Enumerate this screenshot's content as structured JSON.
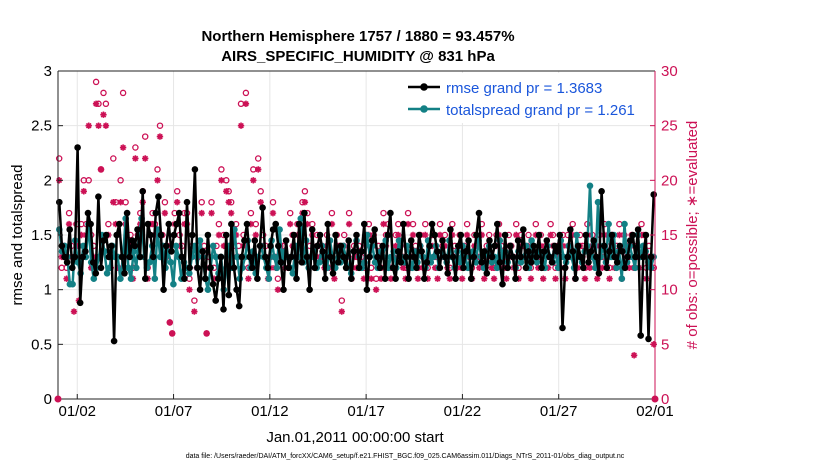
{
  "chart_data": {
    "type": "line",
    "title_line1": "Northern Hemisphere 1757 / 1880 = 93.457%",
    "title_line2": "AIRS_SPECIFIC_HUMIDITY @ 831 hPa",
    "ylabel_left": "rmse and totalspread",
    "ylabel_right": "# of obs: o=possible; ∗=evaluated",
    "xlabel": "Jan.01,2011 00:00:00 start",
    "footnote": "data file: /Users/raeder/DAI/ATM_forcXX/CAM6_setup/f.e21.FHIST_BGC.f09_025.CAM6assim.011/Diags_NTrS_2011-01/obs_diag_output.nc",
    "xlim": [
      0,
      31
    ],
    "ylim_left": [
      0,
      3
    ],
    "ylim_right": [
      0,
      30
    ],
    "x_ticks": [
      1,
      6,
      11,
      16,
      21,
      26,
      31
    ],
    "x_tick_labels": [
      "01/02",
      "01/07",
      "01/12",
      "01/17",
      "01/22",
      "01/27",
      "02/01"
    ],
    "y_ticks_left": [
      0,
      0.5,
      1,
      1.5,
      2,
      2.5,
      3
    ],
    "y_tick_labels_left": [
      "0",
      "0.5",
      "1",
      "1.5",
      "2",
      "2.5",
      "3"
    ],
    "y_ticks_right": [
      0,
      5,
      10,
      15,
      20,
      25,
      30
    ],
    "y_tick_labels_right": [
      "0",
      "5",
      "10",
      "15",
      "20",
      "25",
      "30"
    ],
    "legend_position": "top-right",
    "colors": {
      "rmse": "#000000",
      "spread": "#138085",
      "obs": "#cc1155",
      "grid": "#e6e6e6",
      "legend_text": "#1a56db"
    },
    "series": [
      {
        "name": "rmse grand pr = 1.3683",
        "key": "rmse",
        "values": [
          1.8,
          1.4,
          1.3,
          1.25,
          1.55,
          1.2,
          1.3,
          2.3,
          0.88,
          1.3,
          1.35,
          1.7,
          1.6,
          1.25,
          1.15,
          1.85,
          1.2,
          1.45,
          1.5,
          1.3,
          1.4,
          0.53,
          1.5,
          1.6,
          1.3,
          1.15,
          1.7,
          1.3,
          1.45,
          1.4,
          1.55,
          1.3,
          1.9,
          1.1,
          1.6,
          1.5,
          1.3,
          1.7,
          1.85,
          1.5,
          1.0,
          1.4,
          1.6,
          1.35,
          1.5,
          1.6,
          1.7,
          1.3,
          1.1,
          1.8,
          1.2,
          1.5,
          2.1,
          1.2,
          1.0,
          1.35,
          1.1,
          1.5,
          1.2,
          1.05,
          0.9,
          1.1,
          1.3,
          0.82,
          1.5,
          0.95,
          1.6,
          1.2,
          1.0,
          0.85,
          1.3,
          1.45,
          1.6,
          1.3,
          1.2,
          1.45,
          1.1,
          1.4,
          1.75,
          1.3,
          1.2,
          1.4,
          1.55,
          1.6,
          1.4,
          1.25,
          1.0,
          1.45,
          1.2,
          1.3,
          1.5,
          1.1,
          1.6,
          1.25,
          1.7,
          1.3,
          1.0,
          1.55,
          1.2,
          1.4,
          1.5,
          1.35,
          1.1,
          1.6,
          1.3,
          1.15,
          1.5,
          1.25,
          1.4,
          1.3,
          1.2,
          1.45,
          1.1,
          1.35,
          1.5,
          1.2,
          1.35,
          1.6,
          1.0,
          1.3,
          1.45,
          1.55,
          1.3,
          1.2,
          1.4,
          1.1,
          1.5,
          1.7,
          1.2,
          1.1,
          1.35,
          1.25,
          1.6,
          1.3,
          1.1,
          1.45,
          1.3,
          1.2,
          1.5,
          1.35,
          1.1,
          1.25,
          1.4,
          1.6,
          1.5,
          1.35,
          1.2,
          1.45,
          1.3,
          1.15,
          1.55,
          1.3,
          1.1,
          1.4,
          1.5,
          1.2,
          1.35,
          1.45,
          1.1,
          1.3,
          1.5,
          1.7,
          1.25,
          1.35,
          1.15,
          1.45,
          1.3,
          1.4,
          1.6,
          1.25,
          1.05,
          1.5,
          1.2,
          1.4,
          1.3,
          1.1,
          1.45,
          1.3,
          1.55,
          1.2,
          1.35,
          1.25,
          1.4,
          1.3,
          1.5,
          1.2,
          1.35,
          1.45,
          1.3,
          1.25,
          1.4,
          1.35,
          1.5,
          0.65,
          1.2,
          1.3,
          1.55,
          1.35,
          1.1,
          1.4,
          1.3,
          1.2,
          1.5,
          1.25,
          1.35,
          1.45,
          1.3,
          1.15,
          1.9,
          1.4,
          1.2,
          1.35,
          1.5,
          1.3,
          1.25,
          1.4,
          1.35,
          1.2,
          1.3,
          1.45,
          1.5,
          1.3,
          1.55,
          0.58,
          1.3,
          1.5,
          0.55,
          1.3,
          1.87
        ]
      },
      {
        "name": "totalspread grand pr = 1.261",
        "key": "spread",
        "values": [
          1.55,
          1.35,
          1.4,
          1.3,
          1.05,
          1.05,
          1.45,
          1.25,
          1.15,
          1.4,
          1.3,
          1.6,
          1.25,
          1.1,
          1.2,
          1.3,
          1.5,
          1.35,
          1.15,
          1.2,
          1.4,
          1.3,
          1.3,
          1.1,
          1.3,
          1.65,
          1.2,
          1.1,
          1.35,
          1.2,
          1.5,
          1.65,
          1.3,
          1.2,
          1.25,
          1.4,
          1.1,
          1.55,
          1.3,
          1.4,
          1.2,
          1.35,
          1.25,
          1.05,
          1.4,
          1.3,
          1.1,
          1.25,
          1.2,
          1.15,
          1.3,
          1.4,
          1.2,
          1.45,
          1.3,
          1.1,
          1.0,
          1.2,
          1.4,
          1.3,
          1.15,
          1.3,
          1.0,
          1.2,
          1.4,
          1.2,
          1.55,
          1.3,
          1.1,
          1.2,
          1.3,
          1.45,
          1.2,
          1.35,
          1.15,
          1.3,
          1.4,
          1.3,
          1.2,
          1.1,
          1.45,
          1.3,
          1.2,
          1.55,
          1.25,
          1.35,
          1.3,
          1.2,
          1.15,
          1.4,
          1.3,
          1.65,
          1.25,
          1.45,
          1.2,
          1.3,
          1.35,
          1.2,
          1.25,
          1.4,
          1.3,
          1.2,
          1.45,
          1.3,
          1.2,
          1.35,
          1.25,
          1.4,
          1.3,
          1.2,
          1.15,
          1.35,
          1.45,
          1.3,
          1.2,
          1.25,
          1.5,
          1.3,
          1.4,
          1.25,
          1.2,
          1.35,
          1.3,
          1.45,
          1.2,
          1.3,
          1.35,
          1.2,
          1.45,
          1.3,
          1.25,
          1.4,
          1.3,
          1.2,
          1.35,
          1.25,
          1.4,
          1.3,
          1.2,
          1.45,
          1.25,
          1.3,
          1.4,
          1.2,
          1.35,
          1.3,
          1.25,
          1.45,
          1.3,
          1.2,
          1.35,
          1.25,
          1.4,
          1.3,
          1.2,
          1.3,
          1.35,
          1.25,
          1.45,
          1.3,
          1.2,
          1.35,
          1.4,
          1.25,
          1.3,
          1.2,
          1.45,
          1.3,
          1.35,
          1.25,
          1.4,
          1.3,
          1.2,
          1.35,
          1.25,
          1.3,
          1.4,
          1.2,
          1.45,
          1.3,
          1.25,
          1.35,
          1.3,
          1.2,
          1.4,
          1.3,
          1.25,
          1.35,
          1.2,
          1.45,
          1.3,
          1.25,
          1.4,
          1.3,
          1.2,
          1.5,
          1.3,
          1.25,
          1.35,
          1.4,
          1.95,
          1.3,
          1.2,
          1.8,
          1.3,
          1.4,
          1.25,
          1.6,
          1.3,
          1.5,
          1.2,
          1.35,
          1.1,
          1.6,
          1.25,
          1.4,
          1.3,
          1.2,
          1.5,
          1.3,
          1.4,
          1.35,
          1.25,
          1.2,
          1.3
        ]
      }
    ],
    "obs_possible": [
      22,
      12,
      14,
      12,
      17,
      14,
      13,
      16,
      14,
      16,
      20,
      16,
      20,
      15,
      14,
      29,
      27,
      21,
      28,
      27,
      16,
      13,
      22,
      18,
      12,
      20,
      28,
      18,
      14,
      15,
      12,
      23,
      15,
      17,
      19,
      24,
      12,
      16,
      17,
      16,
      21,
      25,
      15,
      18,
      14,
      7,
      6,
      17,
      19,
      15,
      14,
      17,
      17,
      11,
      14,
      9,
      13,
      14,
      18,
      14,
      6,
      13,
      18,
      12,
      14,
      16,
      21,
      15,
      20,
      19,
      18,
      14,
      16,
      14,
      27,
      15,
      28,
      12,
      17,
      21,
      16,
      22,
      19,
      15,
      14,
      12,
      13,
      18,
      13,
      11,
      14,
      14,
      13,
      13,
      17,
      15,
      14,
      16,
      14,
      18,
      19,
      17,
      14,
      16,
      13,
      15,
      14,
      14,
      13,
      15,
      13,
      17,
      12,
      15,
      14,
      9,
      15,
      13,
      17,
      12,
      14,
      13,
      14,
      13,
      12,
      15,
      16,
      12,
      15,
      11,
      14,
      12,
      17,
      15,
      16,
      12,
      13,
      15,
      16,
      14,
      13,
      12,
      17,
      13,
      16,
      14,
      12,
      15,
      13,
      16,
      12,
      14,
      15,
      13,
      12,
      16,
      14,
      15,
      13,
      12,
      16,
      14,
      13,
      15,
      12,
      14,
      16,
      13,
      12,
      15,
      14,
      13,
      16,
      12,
      14,
      15,
      13,
      12,
      15,
      16,
      14,
      13,
      12,
      15,
      14,
      13,
      16,
      12,
      15,
      14,
      13,
      15,
      12,
      14,
      16,
      13,
      15,
      12,
      14,
      13,
      16,
      15,
      12,
      14,
      13,
      15,
      12,
      15,
      14,
      16,
      12,
      13,
      15,
      14,
      12,
      16,
      13,
      15,
      14,
      12,
      15,
      13,
      16,
      14,
      12,
      15,
      13,
      14,
      16,
      12,
      15,
      14,
      13,
      15,
      12,
      14,
      13,
      16,
      15,
      12,
      14,
      13,
      12
    ],
    "obs_evaluated": [
      20,
      13,
      13,
      11,
      16,
      13,
      8,
      14,
      9,
      15,
      19,
      15,
      25,
      12,
      13,
      27,
      25,
      21,
      26,
      25,
      15,
      12,
      18,
      16,
      12,
      18,
      23,
      16,
      13,
      14,
      11,
      22,
      14,
      16,
      18,
      22,
      11,
      15,
      16,
      15,
      20,
      24,
      14,
      17,
      13,
      7,
      6,
      16,
      18,
      14,
      13,
      16,
      16,
      10,
      13,
      8,
      12,
      13,
      17,
      13,
      6,
      12,
      17,
      11,
      13,
      15,
      20,
      14,
      19,
      18,
      17,
      13,
      15,
      13,
      25,
      14,
      27,
      11,
      16,
      20,
      15,
      21,
      18,
      14,
      13,
      11,
      12,
      17,
      12,
      10,
      13,
      13,
      12,
      12,
      16,
      14,
      13,
      15,
      13,
      17,
      18,
      16,
      13,
      15,
      12,
      14,
      13,
      13,
      12,
      14,
      12,
      16,
      11,
      14,
      13,
      8,
      14,
      12,
      16,
      11,
      13,
      12,
      13,
      12,
      11,
      14,
      15,
      11,
      14,
      10,
      13,
      11,
      16,
      14,
      15,
      11,
      12,
      14,
      15,
      13,
      12,
      11,
      16,
      12,
      15,
      13,
      11,
      14,
      12,
      15,
      11,
      13,
      14,
      12,
      11,
      15,
      13,
      14,
      12,
      11,
      15,
      13,
      12,
      14,
      11,
      13,
      15,
      12,
      11,
      14,
      13,
      12,
      15,
      11,
      13,
      14,
      12,
      11,
      14,
      15,
      13,
      12,
      11,
      14,
      13,
      12,
      15,
      11,
      14,
      13,
      12,
      14,
      11,
      13,
      15,
      12,
      14,
      11,
      13,
      12,
      15,
      14,
      11,
      13,
      12,
      14,
      11,
      14,
      13,
      15,
      11,
      12,
      14,
      13,
      11,
      15,
      12,
      14,
      13,
      11,
      14,
      12,
      15,
      13,
      11,
      14,
      12,
      13,
      15,
      11,
      14,
      13,
      12,
      14,
      4,
      13,
      12,
      15,
      14,
      11,
      13,
      12,
      5
    ]
  }
}
